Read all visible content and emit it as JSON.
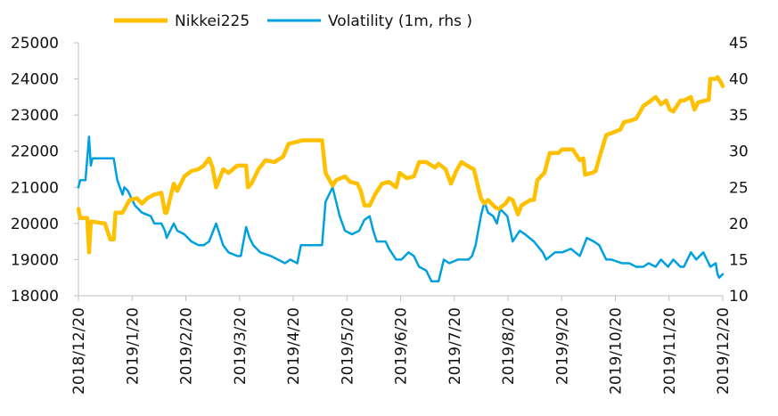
{
  "chart_data": {
    "type": "line",
    "x_categories": [
      "2018/12/20",
      "2019/1/20",
      "2019/2/20",
      "2019/3/20",
      "2019/4/20",
      "2019/5/20",
      "2019/6/20",
      "2019/7/20",
      "2019/8/20",
      "2019/9/20",
      "2019/10/20",
      "2019/11/20",
      "2019/12/20"
    ],
    "x_range": [
      "2018-12-20",
      "2019-12-20"
    ],
    "y_left": {
      "min": 18000,
      "max": 25000,
      "ticks": [
        18000,
        19000,
        20000,
        21000,
        22000,
        23000,
        24000,
        25000
      ]
    },
    "y_right": {
      "min": 10,
      "max": 45,
      "ticks": [
        10,
        15,
        20,
        25,
        30,
        35,
        40,
        45
      ]
    },
    "grid": false,
    "legend_position": "top",
    "series": [
      {
        "name": "Nikkei225",
        "axis": "left",
        "color": "#ffc000",
        "points": [
          [
            "2018-12-20",
            20400
          ],
          [
            "2018-12-21",
            20150
          ],
          [
            "2018-12-25",
            20150
          ],
          [
            "2018-12-26",
            19200
          ],
          [
            "2018-12-27",
            20050
          ],
          [
            "2018-12-28",
            20050
          ],
          [
            "2019-01-04",
            20000
          ],
          [
            "2019-01-07",
            19560
          ],
          [
            "2019-01-09",
            19560
          ],
          [
            "2019-01-10",
            20300
          ],
          [
            "2019-01-14",
            20300
          ],
          [
            "2019-01-18",
            20650
          ],
          [
            "2019-01-22",
            20700
          ],
          [
            "2019-01-25",
            20550
          ],
          [
            "2019-01-28",
            20700
          ],
          [
            "2019-02-01",
            20800
          ],
          [
            "2019-02-05",
            20850
          ],
          [
            "2019-02-07",
            20300
          ],
          [
            "2019-02-08",
            20300
          ],
          [
            "2019-02-12",
            21100
          ],
          [
            "2019-02-14",
            20900
          ],
          [
            "2019-02-18",
            21300
          ],
          [
            "2019-02-22",
            21450
          ],
          [
            "2019-02-26",
            21500
          ],
          [
            "2019-03-01",
            21600
          ],
          [
            "2019-03-04",
            21800
          ],
          [
            "2019-03-06",
            21550
          ],
          [
            "2019-03-08",
            21000
          ],
          [
            "2019-03-12",
            21500
          ],
          [
            "2019-03-15",
            21400
          ],
          [
            "2019-03-20",
            21600
          ],
          [
            "2019-03-25",
            21600
          ],
          [
            "2019-03-26",
            21000
          ],
          [
            "2019-03-28",
            21100
          ],
          [
            "2019-04-01",
            21500
          ],
          [
            "2019-04-05",
            21750
          ],
          [
            "2019-04-10",
            21700
          ],
          [
            "2019-04-15",
            21850
          ],
          [
            "2019-04-18",
            22200
          ],
          [
            "2019-04-22",
            22250
          ],
          [
            "2019-04-26",
            22300
          ],
          [
            "2019-05-07",
            22300
          ],
          [
            "2019-05-09",
            21400
          ],
          [
            "2019-05-13",
            21050
          ],
          [
            "2019-05-15",
            21200
          ],
          [
            "2019-05-20",
            21300
          ],
          [
            "2019-05-23",
            21150
          ],
          [
            "2019-05-27",
            21100
          ],
          [
            "2019-05-29",
            20900
          ],
          [
            "2019-05-31",
            20500
          ],
          [
            "2019-06-03",
            20500
          ],
          [
            "2019-06-06",
            20800
          ],
          [
            "2019-06-10",
            21100
          ],
          [
            "2019-06-14",
            21150
          ],
          [
            "2019-06-18",
            21000
          ],
          [
            "2019-06-20",
            21400
          ],
          [
            "2019-06-24",
            21250
          ],
          [
            "2019-06-28",
            21300
          ],
          [
            "2019-07-01",
            21700
          ],
          [
            "2019-07-05",
            21700
          ],
          [
            "2019-07-10",
            21550
          ],
          [
            "2019-07-12",
            21650
          ],
          [
            "2019-07-16",
            21500
          ],
          [
            "2019-07-19",
            21100
          ],
          [
            "2019-07-22",
            21450
          ],
          [
            "2019-07-25",
            21700
          ],
          [
            "2019-07-30",
            21550
          ],
          [
            "2019-08-01",
            21500
          ],
          [
            "2019-08-05",
            20700
          ],
          [
            "2019-08-07",
            20550
          ],
          [
            "2019-08-09",
            20650
          ],
          [
            "2019-08-13",
            20450
          ],
          [
            "2019-08-15",
            20400
          ],
          [
            "2019-08-19",
            20550
          ],
          [
            "2019-08-21",
            20700
          ],
          [
            "2019-08-23",
            20650
          ],
          [
            "2019-08-26",
            20250
          ],
          [
            "2019-08-28",
            20500
          ],
          [
            "2019-09-02",
            20650
          ],
          [
            "2019-09-04",
            20650
          ],
          [
            "2019-09-06",
            21200
          ],
          [
            "2019-09-10",
            21400
          ],
          [
            "2019-09-13",
            21950
          ],
          [
            "2019-09-18",
            21950
          ],
          [
            "2019-09-20",
            22050
          ],
          [
            "2019-09-26",
            22050
          ],
          [
            "2019-09-30",
            21750
          ],
          [
            "2019-10-02",
            21800
          ],
          [
            "2019-10-03",
            21350
          ],
          [
            "2019-10-07",
            21400
          ],
          [
            "2019-10-09",
            21450
          ],
          [
            "2019-10-11",
            21800
          ],
          [
            "2019-10-15",
            22450
          ],
          [
            "2019-10-18",
            22500
          ],
          [
            "2019-10-23",
            22600
          ],
          [
            "2019-10-25",
            22800
          ],
          [
            "2019-10-29",
            22850
          ],
          [
            "2019-11-01",
            22900
          ],
          [
            "2019-11-05",
            23250
          ],
          [
            "2019-11-08",
            23350
          ],
          [
            "2019-11-12",
            23500
          ],
          [
            "2019-11-15",
            23300
          ],
          [
            "2019-11-18",
            23400
          ],
          [
            "2019-11-20",
            23150
          ],
          [
            "2019-11-22",
            23100
          ],
          [
            "2019-11-26",
            23400
          ],
          [
            "2019-11-28",
            23400
          ],
          [
            "2019-12-02",
            23500
          ],
          [
            "2019-12-04",
            23150
          ],
          [
            "2019-12-06",
            23350
          ],
          [
            "2019-12-10",
            23400
          ],
          [
            "2019-12-12",
            23420
          ],
          [
            "2019-12-13",
            24000
          ],
          [
            "2019-12-16",
            24000
          ],
          [
            "2019-12-17",
            24050
          ],
          [
            "2019-12-19",
            23900
          ],
          [
            "2019-12-20",
            23800
          ]
        ]
      },
      {
        "name": "Volatility (1m, rhs )",
        "axis": "right",
        "color": "#00a0e0",
        "points": [
          [
            "2018-12-20",
            25
          ],
          [
            "2018-12-21",
            26
          ],
          [
            "2018-12-24",
            26
          ],
          [
            "2018-12-26",
            32
          ],
          [
            "2018-12-27",
            28
          ],
          [
            "2018-12-28",
            29
          ],
          [
            "2019-01-04",
            29
          ],
          [
            "2019-01-09",
            29
          ],
          [
            "2019-01-11",
            26
          ],
          [
            "2019-01-14",
            24
          ],
          [
            "2019-01-15",
            25
          ],
          [
            "2019-01-17",
            24.5
          ],
          [
            "2019-01-21",
            22.5
          ],
          [
            "2019-01-25",
            21.5
          ],
          [
            "2019-01-30",
            21
          ],
          [
            "2019-02-01",
            20
          ],
          [
            "2019-02-05",
            20
          ],
          [
            "2019-02-07",
            19
          ],
          [
            "2019-02-08",
            18
          ],
          [
            "2019-02-12",
            20
          ],
          [
            "2019-02-14",
            19
          ],
          [
            "2019-02-18",
            18.5
          ],
          [
            "2019-02-22",
            17.5
          ],
          [
            "2019-02-26",
            17
          ],
          [
            "2019-03-01",
            17
          ],
          [
            "2019-03-04",
            17.5
          ],
          [
            "2019-03-08",
            20
          ],
          [
            "2019-03-12",
            17
          ],
          [
            "2019-03-15",
            16
          ],
          [
            "2019-03-20",
            15.5
          ],
          [
            "2019-03-22",
            15.5
          ],
          [
            "2019-03-25",
            19.5
          ],
          [
            "2019-03-27",
            18
          ],
          [
            "2019-03-29",
            17
          ],
          [
            "2019-04-02",
            16
          ],
          [
            "2019-04-08",
            15.5
          ],
          [
            "2019-04-12",
            15
          ],
          [
            "2019-04-16",
            14.5
          ],
          [
            "2019-04-19",
            15
          ],
          [
            "2019-04-23",
            14.5
          ],
          [
            "2019-04-25",
            17
          ],
          [
            "2019-05-07",
            17
          ],
          [
            "2019-05-09",
            23
          ],
          [
            "2019-05-13",
            25
          ],
          [
            "2019-05-15",
            23
          ],
          [
            "2019-05-17",
            21
          ],
          [
            "2019-05-20",
            19
          ],
          [
            "2019-05-24",
            18.5
          ],
          [
            "2019-05-28",
            19
          ],
          [
            "2019-05-31",
            20.5
          ],
          [
            "2019-06-03",
            21
          ],
          [
            "2019-06-05",
            19
          ],
          [
            "2019-06-07",
            17.5
          ],
          [
            "2019-06-12",
            17.5
          ],
          [
            "2019-06-14",
            16.5
          ],
          [
            "2019-06-18",
            15
          ],
          [
            "2019-06-21",
            15
          ],
          [
            "2019-06-25",
            16
          ],
          [
            "2019-06-28",
            15.5
          ],
          [
            "2019-07-01",
            14
          ],
          [
            "2019-07-05",
            13.5
          ],
          [
            "2019-07-08",
            12
          ],
          [
            "2019-07-12",
            12
          ],
          [
            "2019-07-15",
            15
          ],
          [
            "2019-07-18",
            14.5
          ],
          [
            "2019-07-23",
            15
          ],
          [
            "2019-07-29",
            15
          ],
          [
            "2019-07-31",
            15.5
          ],
          [
            "2019-08-02",
            17
          ],
          [
            "2019-08-05",
            21
          ],
          [
            "2019-08-07",
            23
          ],
          [
            "2019-08-09",
            21.5
          ],
          [
            "2019-08-12",
            21
          ],
          [
            "2019-08-14",
            20
          ],
          [
            "2019-08-16",
            22
          ],
          [
            "2019-08-20",
            21
          ],
          [
            "2019-08-23",
            17.5
          ],
          [
            "2019-08-27",
            19
          ],
          [
            "2019-08-30",
            18.5
          ],
          [
            "2019-09-04",
            17.5
          ],
          [
            "2019-09-09",
            16
          ],
          [
            "2019-09-11",
            15
          ],
          [
            "2019-09-16",
            16
          ],
          [
            "2019-09-20",
            16
          ],
          [
            "2019-09-25",
            16.5
          ],
          [
            "2019-09-30",
            15.5
          ],
          [
            "2019-10-04",
            18
          ],
          [
            "2019-10-08",
            17.5
          ],
          [
            "2019-10-11",
            17
          ],
          [
            "2019-10-15",
            15
          ],
          [
            "2019-10-18",
            15
          ],
          [
            "2019-10-24",
            14.5
          ],
          [
            "2019-10-28",
            14.5
          ],
          [
            "2019-11-01",
            14
          ],
          [
            "2019-11-05",
            14
          ],
          [
            "2019-11-08",
            14.5
          ],
          [
            "2019-11-12",
            14
          ],
          [
            "2019-11-15",
            15
          ],
          [
            "2019-11-19",
            14
          ],
          [
            "2019-11-22",
            15
          ],
          [
            "2019-11-26",
            14
          ],
          [
            "2019-11-28",
            14
          ],
          [
            "2019-12-02",
            16
          ],
          [
            "2019-12-05",
            15
          ],
          [
            "2019-12-09",
            16
          ],
          [
            "2019-12-11",
            15
          ],
          [
            "2019-12-13",
            14
          ],
          [
            "2019-12-16",
            14.5
          ],
          [
            "2019-12-17",
            13
          ],
          [
            "2019-12-18",
            12.5
          ],
          [
            "2019-12-20",
            13
          ]
        ]
      }
    ]
  }
}
